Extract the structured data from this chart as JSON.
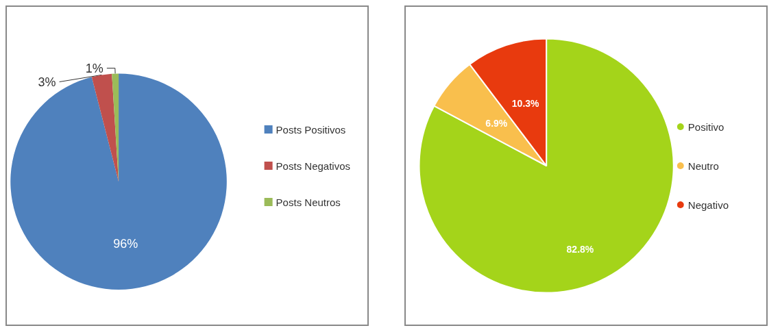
{
  "chart_data": [
    {
      "type": "pie",
      "categories": [
        "Posts Positivos",
        "Posts Negativos",
        "Posts Neutros"
      ],
      "values": [
        96,
        3,
        1
      ],
      "colors": [
        "#4f81bd",
        "#c0504d",
        "#9bbb59"
      ],
      "value_labels": [
        "96%",
        "3%",
        "1%"
      ],
      "legend": "right"
    },
    {
      "type": "pie",
      "categories": [
        "Positivo",
        "Neutro",
        "Negativo"
      ],
      "values": [
        82.8,
        6.9,
        10.3
      ],
      "colors": [
        "#a4d41a",
        "#f9bf4d",
        "#e83a0e"
      ],
      "value_labels": [
        "82.8%",
        "6.9%",
        "10.3%"
      ],
      "legend": "right"
    }
  ]
}
